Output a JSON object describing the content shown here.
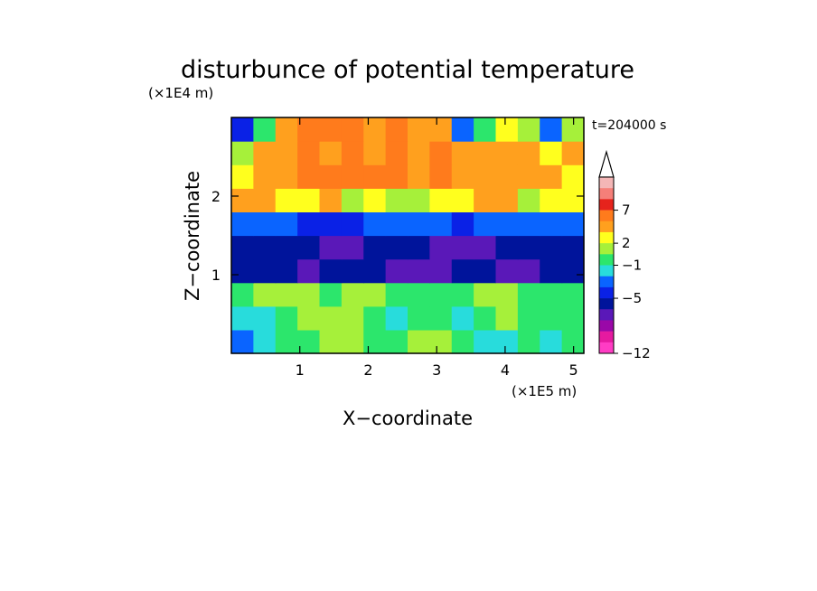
{
  "chart_data": {
    "type": "heatmap",
    "title": "disturbunce of potential temperature",
    "xlabel": "X−coordinate",
    "ylabel": "Z−coordinate",
    "x_unit": "(×1E5 m)",
    "y_unit": "(×1E4 m)",
    "time_label": "t=204000 s",
    "x_ticks": [
      "1",
      "2",
      "3",
      "4",
      "5"
    ],
    "y_ticks": [
      "1",
      "2"
    ],
    "xlim": [
      0,
      5.15
    ],
    "ylim": [
      0,
      3.0
    ],
    "grid": false,
    "legend": "right",
    "colorbar": {
      "labels": [
        "7",
        "2",
        "−1",
        "−5",
        "−12"
      ],
      "colors": [
        "#f4b6b6",
        "#f57f79",
        "#e6231c",
        "#ff7b1c",
        "#ffa01e",
        "#ffff1e",
        "#a6f03a",
        "#2ce66c",
        "#28dcdc",
        "#0a64ff",
        "#0a21e6",
        "#00149b",
        "#5a18b8",
        "#9a08a8",
        "#e51aa0",
        "#ff3cc4"
      ]
    },
    "series": [
      {
        "values": [
          [
            -2,
            -1,
            0,
            0,
            1,
            1,
            0,
            0,
            1,
            1,
            0,
            -1,
            -1,
            0,
            -1,
            0
          ],
          [
            -1,
            -1,
            0,
            1,
            1,
            1,
            0,
            -1,
            0,
            0,
            -1,
            0,
            1,
            0,
            0,
            0
          ],
          [
            0,
            1,
            1,
            1,
            0,
            1,
            1,
            0,
            0,
            0,
            0,
            1,
            1,
            0,
            0,
            0
          ],
          [
            -7,
            -7,
            -7,
            -8,
            -7,
            -7,
            -7,
            -8,
            -8,
            -8,
            -7,
            -7,
            -8,
            -8,
            -7,
            -7
          ],
          [
            -6,
            -7,
            -6,
            -7,
            -8,
            -8,
            -7,
            -7,
            -7,
            -8,
            -8,
            -8,
            -7,
            -7,
            -6,
            -6
          ],
          [
            -3,
            -3,
            -3,
            -4,
            -4,
            -4,
            -3,
            -3,
            -3,
            -3,
            -4,
            -3,
            -3,
            -3,
            -3,
            -3
          ],
          [
            3,
            4,
            2,
            2,
            3,
            1,
            2,
            1,
            1,
            2,
            2,
            3,
            3,
            1,
            2,
            2
          ],
          [
            2,
            3,
            4,
            5,
            5,
            6,
            5,
            6,
            4,
            5,
            3,
            3,
            3,
            3,
            3,
            2
          ],
          [
            1,
            3,
            4,
            5,
            4,
            5,
            3,
            5,
            4,
            6,
            3,
            4,
            3,
            3,
            2,
            3
          ],
          [
            -4,
            0,
            3,
            5,
            5,
            6,
            4,
            5,
            3,
            4,
            -3,
            0,
            2,
            1,
            -3,
            1
          ]
        ]
      }
    ]
  }
}
